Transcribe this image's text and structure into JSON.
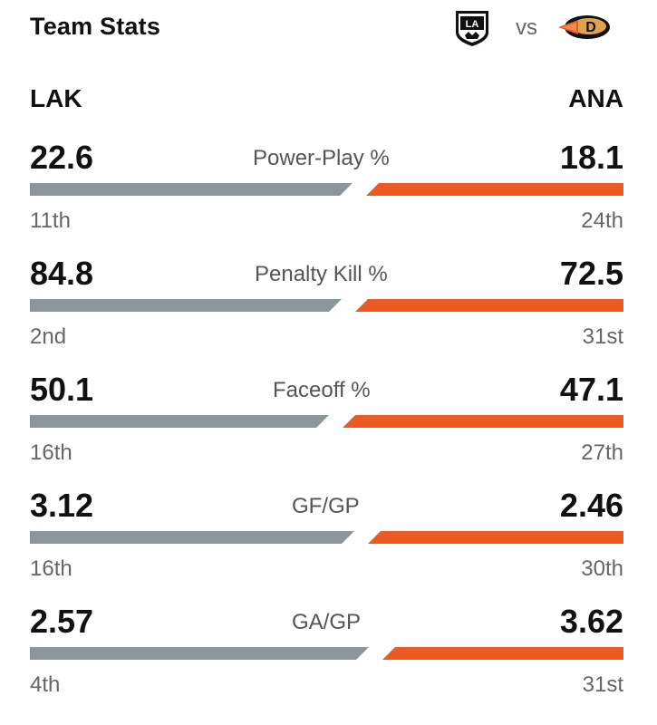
{
  "header": {
    "title": "Team Stats",
    "vs": "vs",
    "home_logo_icon": "la-kings-logo-icon",
    "away_logo_icon": "anaheim-ducks-logo-icon"
  },
  "teams": {
    "left": "LAK",
    "right": "ANA"
  },
  "colors": {
    "lak_bar": "#8c9598",
    "ana_bar": "#ec5a24"
  },
  "stats": [
    {
      "label": "Power-Play %",
      "left_value": "22.6",
      "right_value": "18.1",
      "left_rank": "11th",
      "right_rank": "24th"
    },
    {
      "label": "Penalty Kill %",
      "left_value": "84.8",
      "right_value": "72.5",
      "left_rank": "2nd",
      "right_rank": "31st"
    },
    {
      "label": "Faceoff %",
      "left_value": "50.1",
      "right_value": "47.1",
      "left_rank": "16th",
      "right_rank": "27th"
    },
    {
      "label": "GF/GP",
      "left_value": "3.12",
      "right_value": "2.46",
      "left_rank": "16th",
      "right_rank": "30th"
    },
    {
      "label": "GA/GP",
      "left_value": "2.57",
      "right_value": "3.62",
      "left_rank": "4th",
      "right_rank": "31st"
    }
  ]
}
